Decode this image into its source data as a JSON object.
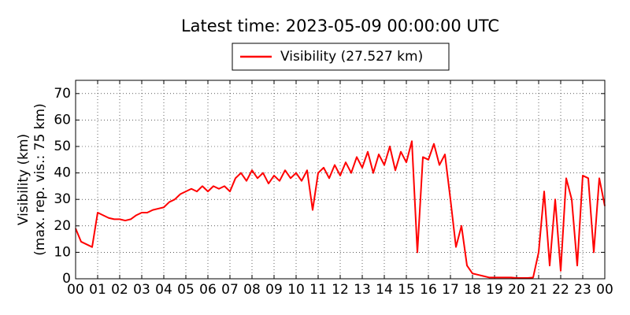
{
  "chart_data": {
    "type": "line",
    "title": "Latest time: 2023-05-09 00:00:00 UTC",
    "y_label_lines": [
      "Visibility (km)",
      "(max. rep. vis.: 75 km)"
    ],
    "x": [
      0,
      0.25,
      0.5,
      0.75,
      1,
      1.25,
      1.5,
      1.75,
      2,
      2.25,
      2.5,
      2.75,
      3,
      3.25,
      3.5,
      3.75,
      4,
      4.25,
      4.5,
      4.75,
      5,
      5.25,
      5.5,
      5.75,
      6,
      6.25,
      6.5,
      6.75,
      7,
      7.25,
      7.5,
      7.75,
      8,
      8.25,
      8.5,
      8.75,
      9,
      9.25,
      9.5,
      9.75,
      10,
      10.25,
      10.5,
      10.75,
      11,
      11.25,
      11.5,
      11.75,
      12,
      12.25,
      12.5,
      12.75,
      13,
      13.25,
      13.5,
      13.75,
      14,
      14.25,
      14.5,
      14.75,
      15,
      15.25,
      15.5,
      15.75,
      16,
      16.25,
      16.5,
      16.75,
      17,
      17.25,
      17.5,
      17.75,
      18,
      18.25,
      18.5,
      18.75,
      19,
      19.25,
      19.5,
      19.75,
      20,
      20.25,
      20.5,
      20.75,
      21,
      21.25,
      21.5,
      21.75,
      22,
      22.25,
      22.5,
      22.75,
      23,
      23.25,
      23.5,
      23.75,
      24
    ],
    "series": [
      {
        "name": "Visibility (27.527 km)",
        "color": "#ff0000",
        "values": [
          19,
          14,
          13,
          12,
          25,
          24,
          23,
          22.5,
          22.5,
          22,
          22.5,
          24,
          25,
          25,
          26,
          26.5,
          27,
          29,
          30,
          32,
          33,
          34,
          33,
          35,
          33,
          35,
          34,
          35,
          33,
          38,
          40,
          37,
          41,
          38,
          40,
          36,
          39,
          37,
          41,
          38,
          40,
          37,
          41,
          26,
          40,
          42,
          38,
          43,
          39,
          44,
          40,
          46,
          42,
          48,
          40,
          47,
          43,
          50,
          41,
          48,
          44,
          52,
          10,
          46,
          45,
          51,
          43,
          47,
          30,
          12,
          20,
          5,
          2,
          1.5,
          1,
          0.5,
          0.5,
          0.5,
          0.5,
          0.5,
          0.3,
          0.3,
          0.3,
          0.5,
          10,
          33,
          5,
          30,
          3,
          38,
          30,
          5,
          39,
          38,
          10,
          38,
          27.527
        ]
      }
    ],
    "xlim": [
      0,
      24
    ],
    "xticks": [
      {
        "value": 0,
        "label": "00"
      },
      {
        "value": 1,
        "label": "01"
      },
      {
        "value": 2,
        "label": "02"
      },
      {
        "value": 3,
        "label": "03"
      },
      {
        "value": 4,
        "label": "04"
      },
      {
        "value": 5,
        "label": "05"
      },
      {
        "value": 6,
        "label": "06"
      },
      {
        "value": 7,
        "label": "07"
      },
      {
        "value": 8,
        "label": "08"
      },
      {
        "value": 9,
        "label": "09"
      },
      {
        "value": 10,
        "label": "10"
      },
      {
        "value": 11,
        "label": "11"
      },
      {
        "value": 12,
        "label": "12"
      },
      {
        "value": 13,
        "label": "13"
      },
      {
        "value": 14,
        "label": "14"
      },
      {
        "value": 15,
        "label": "15"
      },
      {
        "value": 16,
        "label": "16"
      },
      {
        "value": 17,
        "label": "17"
      },
      {
        "value": 18,
        "label": "18"
      },
      {
        "value": 19,
        "label": "19"
      },
      {
        "value": 20,
        "label": "20"
      },
      {
        "value": 21,
        "label": "21"
      },
      {
        "value": 22,
        "label": "22"
      },
      {
        "value": 23,
        "label": "23"
      },
      {
        "value": 24,
        "label": "00"
      }
    ],
    "ylim": [
      0,
      75
    ],
    "yticks": [
      0,
      10,
      20,
      30,
      40,
      50,
      60,
      70
    ],
    "grid": true
  }
}
